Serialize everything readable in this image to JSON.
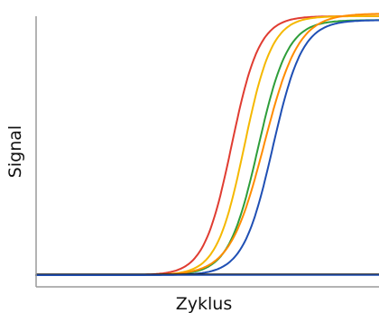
{
  "chart_data": {
    "type": "line",
    "title": "",
    "xlabel": "Zyklus",
    "ylabel": "Signal",
    "grid": false,
    "legend": "none",
    "xlim": [
      0,
      40
    ],
    "ylim": [
      0,
      1
    ],
    "series": [
      {
        "color": "#e03c31",
        "midpoint": 22.8,
        "slope": 0.62,
        "top": 0.99
      },
      {
        "color": "#f5b800",
        "midpoint": 24.3,
        "slope": 0.62,
        "top": 0.99
      },
      {
        "color": "#2e9e3a",
        "midpoint": 25.9,
        "slope": 0.58,
        "top": 0.975
      },
      {
        "color": "#ff8c00",
        "midpoint": 26.6,
        "slope": 0.5,
        "top": 1.0
      },
      {
        "color": "#1f4fb4",
        "midpoint": 27.6,
        "slope": 0.58,
        "top": 0.975
      },
      {
        "color": "#1a1a1a",
        "baseline": true,
        "level": 0.003
      },
      {
        "color": "#1f4fb4",
        "baseline": true,
        "level": 0.0
      }
    ]
  }
}
